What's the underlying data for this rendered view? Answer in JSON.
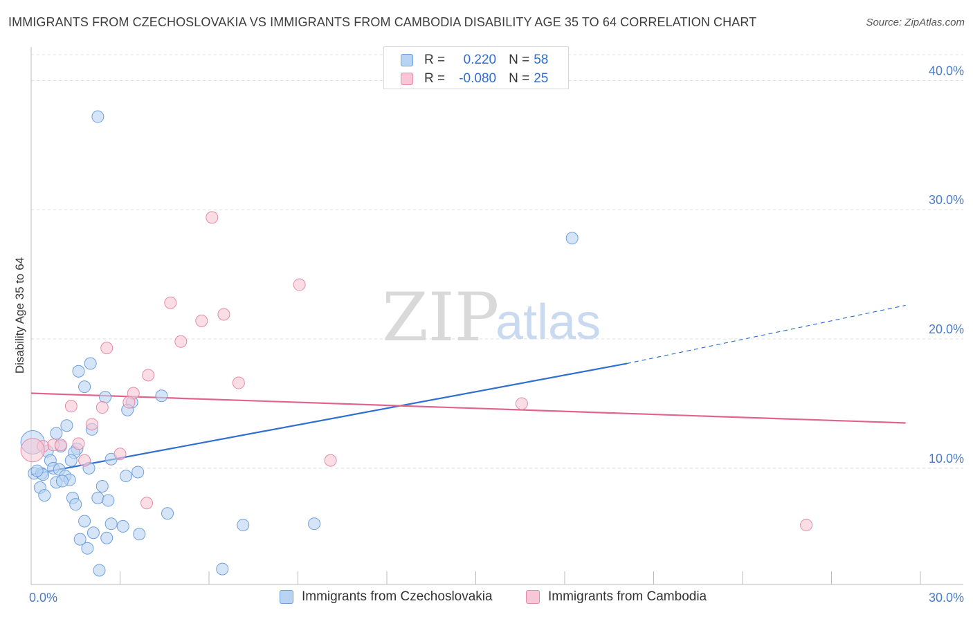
{
  "title": "IMMIGRANTS FROM CZECHOSLOVAKIA VS IMMIGRANTS FROM CAMBODIA DISABILITY AGE 35 TO 64 CORRELATION CHART",
  "source": "Source: ZipAtlas.com",
  "watermark": {
    "zip": "ZIP",
    "atlas": "atlas"
  },
  "legend": {
    "r_label": "R =",
    "n_label": "N =",
    "rows": [
      {
        "r": "0.220",
        "n": "58"
      },
      {
        "r": "-0.080",
        "n": "25"
      }
    ]
  },
  "colors": {
    "blue_fill": "#b9d3f2",
    "blue_stroke": "#6e9fdc",
    "blue_line": "#2e6fd1",
    "pink_fill": "#f8c6d6",
    "pink_stroke": "#e58aa8",
    "pink_line": "#e0648c",
    "grid": "#dcdcdc"
  },
  "chart_data": {
    "type": "scatter",
    "title": "IMMIGRANTS FROM CZECHOSLOVAKIA VS IMMIGRANTS FROM CAMBODIA DISABILITY AGE 35 TO 64 CORRELATION CHART",
    "xlabel": "",
    "ylabel": "Disability Age 35 to 64",
    "xlim": [
      0,
      30
    ],
    "ylim": [
      1.0,
      42.0
    ],
    "x_tick_labels": [
      "0.0%",
      "30.0%"
    ],
    "y_ticks": [
      10,
      20,
      30,
      40
    ],
    "y_tick_labels": [
      "10.0%",
      "20.0%",
      "30.0%",
      "40.0%"
    ],
    "grid": "horizontal dashed",
    "series": [
      {
        "name": "Immigrants from Czechoslovakia",
        "color": "#b9d3f2",
        "r": 0.22,
        "n": 58,
        "trend": {
          "x": [
            0,
            20.1
          ],
          "y": [
            9.5,
            18.1
          ],
          "dashed_extension": {
            "x": [
              20.1,
              29.5
            ],
            "y": [
              18.1,
              22.6
            ]
          }
        },
        "points": [
          [
            2.25,
            37.2
          ],
          [
            18.25,
            27.8
          ],
          [
            2.0,
            18.1
          ],
          [
            1.6,
            17.5
          ],
          [
            1.8,
            16.3
          ],
          [
            2.5,
            15.5
          ],
          [
            3.4,
            15.1
          ],
          [
            4.4,
            15.6
          ],
          [
            3.25,
            14.5
          ],
          [
            1.2,
            13.3
          ],
          [
            2.05,
            13.0
          ],
          [
            0.85,
            12.7
          ],
          [
            1.55,
            11.5
          ],
          [
            1.45,
            11.2
          ],
          [
            0.55,
            11.3
          ],
          [
            1.0,
            11.7
          ],
          [
            1.35,
            10.6
          ],
          [
            0.65,
            10.6
          ],
          [
            2.7,
            10.7
          ],
          [
            0.75,
            10.0
          ],
          [
            1.95,
            10.0
          ],
          [
            0.95,
            9.9
          ],
          [
            0.1,
            9.6
          ],
          [
            0.35,
            9.6
          ],
          [
            0.4,
            9.5
          ],
          [
            0.2,
            9.8
          ],
          [
            1.15,
            9.4
          ],
          [
            1.3,
            9.1
          ],
          [
            3.2,
            9.4
          ],
          [
            3.6,
            9.7
          ],
          [
            0.85,
            8.9
          ],
          [
            1.05,
            9.0
          ],
          [
            0.3,
            8.5
          ],
          [
            2.4,
            8.6
          ],
          [
            0.45,
            7.9
          ],
          [
            1.4,
            7.7
          ],
          [
            2.25,
            7.7
          ],
          [
            2.6,
            7.5
          ],
          [
            1.5,
            7.2
          ],
          [
            4.6,
            6.5
          ],
          [
            1.8,
            5.9
          ],
          [
            2.7,
            5.7
          ],
          [
            3.1,
            5.5
          ],
          [
            7.15,
            5.6
          ],
          [
            9.55,
            5.7
          ],
          [
            2.1,
            5.0
          ],
          [
            3.65,
            4.9
          ],
          [
            1.65,
            4.5
          ],
          [
            2.55,
            4.6
          ],
          [
            1.9,
            3.8
          ],
          [
            2.3,
            2.1
          ],
          [
            6.45,
            2.2
          ],
          [
            0.05,
            12.0
          ]
        ]
      },
      {
        "name": "Immigrants from Cambodia",
        "color": "#f8c6d6",
        "r": -0.08,
        "n": 25,
        "trend": {
          "x": [
            0,
            29.5
          ],
          "y": [
            15.8,
            13.5
          ]
        },
        "points": [
          [
            6.1,
            29.4
          ],
          [
            9.05,
            24.2
          ],
          [
            4.7,
            22.8
          ],
          [
            6.5,
            21.9
          ],
          [
            5.75,
            21.4
          ],
          [
            5.05,
            19.8
          ],
          [
            2.55,
            19.3
          ],
          [
            3.95,
            17.2
          ],
          [
            7.0,
            16.6
          ],
          [
            3.45,
            15.8
          ],
          [
            3.3,
            15.1
          ],
          [
            2.4,
            14.7
          ],
          [
            1.35,
            14.8
          ],
          [
            16.55,
            15.0
          ],
          [
            2.05,
            13.4
          ],
          [
            1.6,
            11.9
          ],
          [
            0.75,
            11.8
          ],
          [
            0.4,
            11.7
          ],
          [
            1.0,
            11.8
          ],
          [
            3.0,
            11.1
          ],
          [
            1.8,
            10.6
          ],
          [
            10.1,
            10.6
          ],
          [
            3.9,
            7.3
          ],
          [
            26.15,
            5.6
          ],
          [
            0.05,
            11.4
          ]
        ]
      }
    ]
  }
}
